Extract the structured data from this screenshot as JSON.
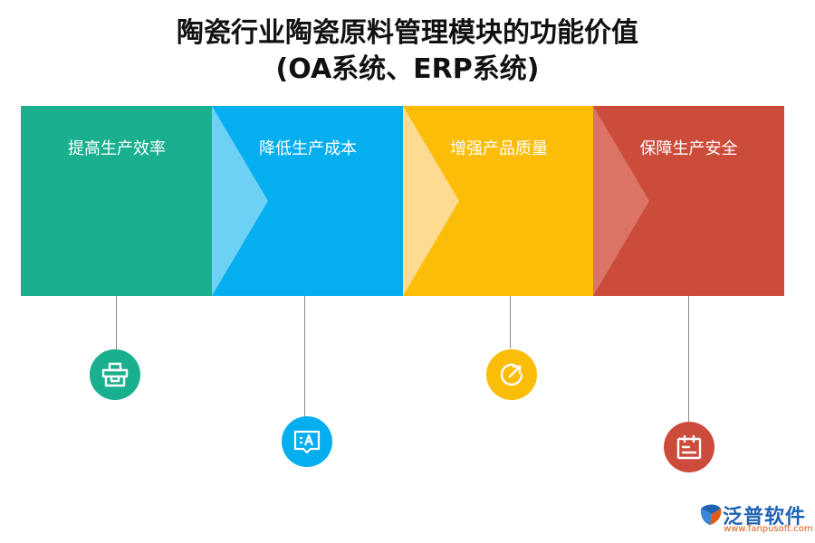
{
  "title": {
    "line1": "陶瓷行业陶瓷原料管理模块的功能价值",
    "line2": "(OA系统、ERP系统)"
  },
  "blocks": [
    {
      "label": "提高生产效率",
      "color": "#1aaf8e",
      "icon": "briefcase-icon"
    },
    {
      "label": "降低生产成本",
      "color": "#05aeef",
      "arrow_color": "#6dd0f5",
      "icon": "message-text-icon"
    },
    {
      "label": "增强产品质量",
      "color": "#fbbd08",
      "arrow_color": "#fddb90",
      "icon": "refresh-arrow-icon"
    },
    {
      "label": "保障生产安全",
      "color": "#cc4c3b",
      "arrow_color": "#db7465",
      "icon": "calendar-list-icon"
    }
  ],
  "logo": {
    "name": "泛普软件",
    "url": "www.fanpusoft.com",
    "primary_color": "#1e63b5",
    "accent_color": "#e05a1a"
  }
}
